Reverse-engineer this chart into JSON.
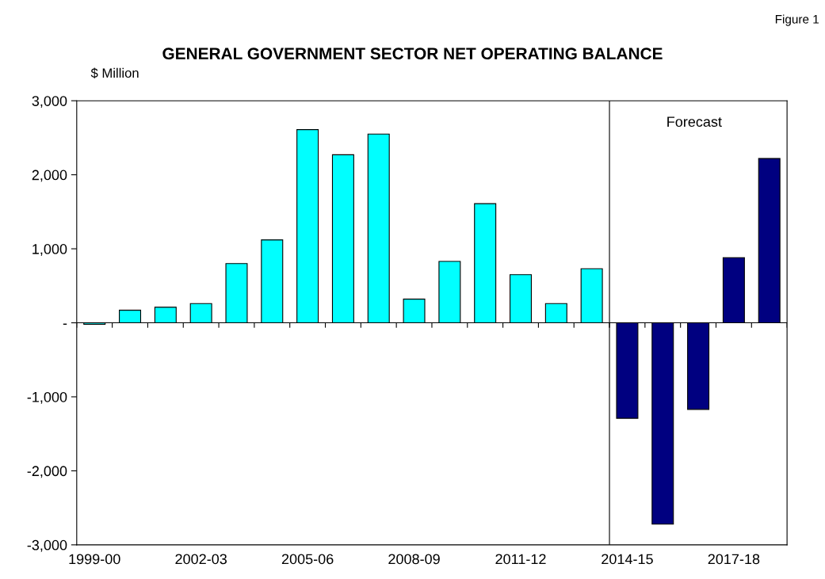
{
  "chart_data": {
    "type": "bar",
    "title": "GENERAL GOVERNMENT SECTOR NET OPERATING BALANCE",
    "ylabel": "$ Million",
    "categories": [
      "1999-00",
      null,
      null,
      "2002-03",
      null,
      null,
      "2005-06",
      null,
      null,
      "2008-09",
      null,
      null,
      "2011-12",
      null,
      null,
      "2014-15",
      null,
      null,
      "2017-18",
      null
    ],
    "values": [
      -20,
      170,
      210,
      260,
      800,
      1120,
      2610,
      2270,
      2550,
      320,
      830,
      1610,
      650,
      260,
      730,
      -1290,
      -2720,
      -1170,
      880,
      2220
    ],
    "colors": [
      "#00ffff",
      "#00ffff",
      "#00ffff",
      "#00ffff",
      "#00ffff",
      "#00ffff",
      "#00ffff",
      "#00ffff",
      "#00ffff",
      "#00ffff",
      "#00ffff",
      "#00ffff",
      "#00ffff",
      "#00ffff",
      "#00ffff",
      "#000080",
      "#000080",
      "#000080",
      "#000080",
      "#000080"
    ],
    "ylim": [
      -3000,
      3000
    ],
    "yticks": [
      {
        "value": -3000,
        "label": "-3,000"
      },
      {
        "value": -2000,
        "label": "-2,000"
      },
      {
        "value": -1000,
        "label": "-1,000"
      },
      {
        "value": 0,
        "label": "-"
      },
      {
        "value": 1000,
        "label": "1,000"
      },
      {
        "value": 2000,
        "label": "2,000"
      },
      {
        "value": 3000,
        "label": "3,000"
      }
    ],
    "ref_lines": [
      {
        "axis": "y",
        "value": 0,
        "color": "#000000"
      }
    ],
    "annotations": [
      "Figure 1",
      "Forecast"
    ],
    "grid": false,
    "legend": false
  }
}
